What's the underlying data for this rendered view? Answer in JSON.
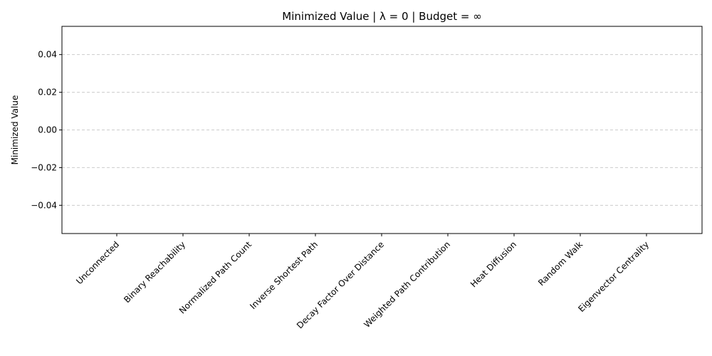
{
  "chart_data": {
    "type": "bar",
    "title": "Minimized Value | λ = 0 | Budget = ∞",
    "xlabel": "",
    "ylabel": "Minimized Value",
    "categories": [
      "Unconnected",
      "Binary Reachability",
      "Normalized Path Count",
      "Inverse Shortest Path",
      "Decay Factor Over Distance",
      "Weighted Path Contribution",
      "Heat Diffusion",
      "Random Walk",
      "Eigenvector Centrality"
    ],
    "values": [
      0,
      0,
      0,
      0,
      0,
      0,
      0,
      0,
      0
    ],
    "ylim": [
      -0.055,
      0.055
    ],
    "yticks": [
      -0.04,
      -0.02,
      0.0,
      0.02,
      0.04
    ],
    "ytick_labels": [
      "−0.04",
      "−0.02",
      "0.00",
      "0.02",
      "0.04"
    ],
    "grid": "y-dashed",
    "x_tick_rotation_deg": 45
  }
}
